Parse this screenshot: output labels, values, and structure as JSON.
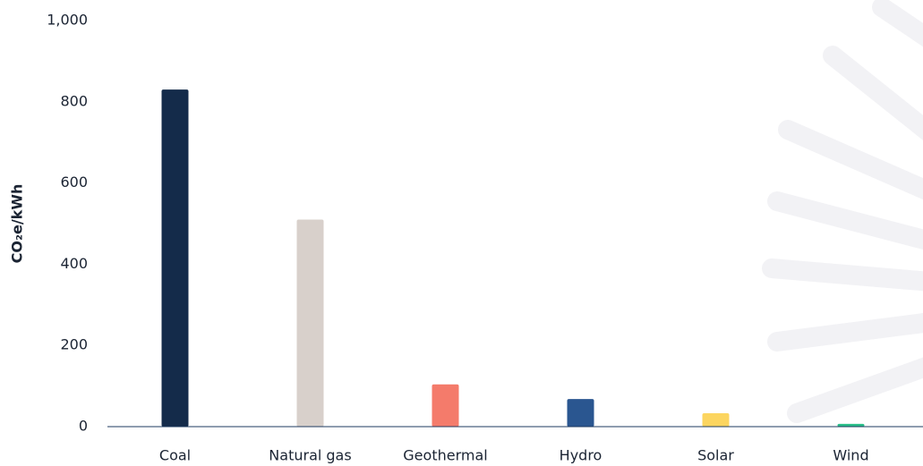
{
  "chart_data": {
    "type": "bar",
    "y_label": "CO₂e/kWh",
    "categories": [
      "Coal",
      "Natural gas",
      "Geothermal",
      "Hydro",
      "Solar",
      "Wind"
    ],
    "values": [
      830,
      510,
      104,
      68,
      33,
      7
    ],
    "colors": [
      "#142b4a",
      "#d8d0cb",
      "#f47b6b",
      "#2a5690",
      "#fcd55f",
      "#2bbf8a"
    ],
    "ylim": [
      0,
      1000
    ],
    "yticks": [
      0,
      200,
      400,
      600,
      800,
      {
        "value": 1000,
        "label": "1,000"
      }
    ],
    "grid": false
  }
}
